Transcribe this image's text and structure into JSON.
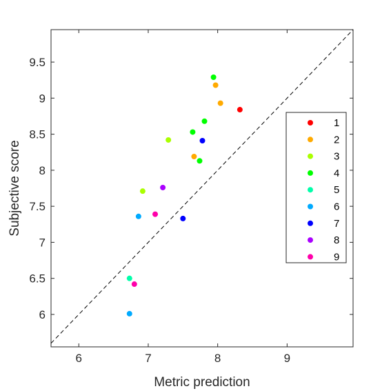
{
  "chart_data": {
    "type": "scatter",
    "xlabel": "Metric prediction",
    "ylabel": "Subjective score",
    "xlim": [
      5.6,
      9.95
    ],
    "ylim": [
      5.55,
      9.95
    ],
    "xticks": [
      6,
      7,
      8,
      9
    ],
    "yticks": [
      6,
      6.5,
      7,
      7.5,
      8,
      8.5,
      9,
      9.5
    ],
    "grid": false,
    "reference_line": "identity (y = x), dashed",
    "legend_position": "right",
    "series": [
      {
        "name": "1",
        "color": "#ff0000",
        "points": [
          [
            8.32,
            8.84
          ]
        ]
      },
      {
        "name": "2",
        "color": "#ffaa00",
        "points": [
          [
            7.97,
            9.18
          ],
          [
            8.04,
            8.93
          ],
          [
            7.66,
            8.19
          ]
        ]
      },
      {
        "name": "3",
        "color": "#aaff00",
        "points": [
          [
            7.29,
            8.42
          ],
          [
            6.92,
            7.71
          ]
        ]
      },
      {
        "name": "4",
        "color": "#00ff00",
        "points": [
          [
            7.94,
            9.29
          ],
          [
            7.81,
            8.68
          ],
          [
            7.64,
            8.53
          ],
          [
            7.74,
            8.13
          ]
        ]
      },
      {
        "name": "5",
        "color": "#00ffaa",
        "points": [
          [
            6.73,
            6.5
          ]
        ]
      },
      {
        "name": "6",
        "color": "#00aaff",
        "points": [
          [
            6.86,
            7.36
          ],
          [
            6.73,
            6.01
          ]
        ]
      },
      {
        "name": "7",
        "color": "#0000ff",
        "points": [
          [
            7.78,
            8.41
          ],
          [
            7.5,
            7.33
          ]
        ]
      },
      {
        "name": "8",
        "color": "#aa00ff",
        "points": [
          [
            7.21,
            7.76
          ]
        ]
      },
      {
        "name": "9",
        "color": "#ff00aa",
        "points": [
          [
            7.1,
            7.39
          ],
          [
            6.8,
            6.42
          ]
        ]
      }
    ]
  }
}
